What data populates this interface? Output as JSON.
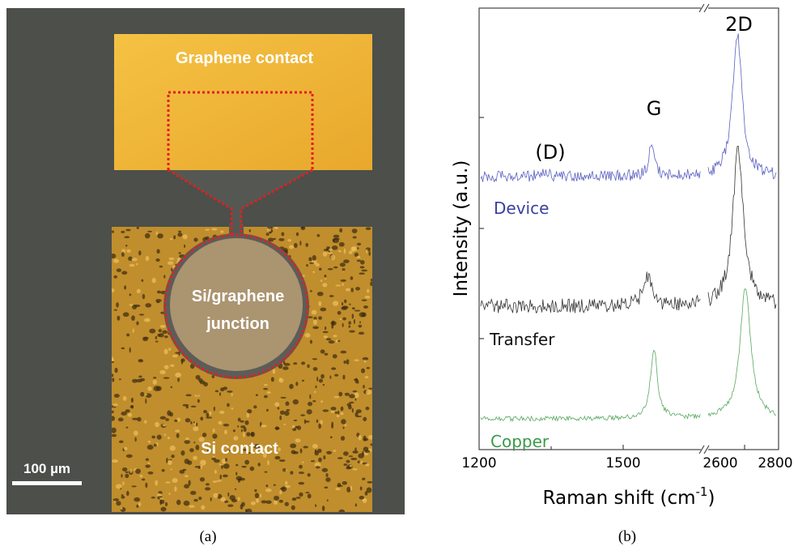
{
  "panel_a": {
    "graphene_contact": "Graphene contact",
    "junction_line1": "Si/graphene",
    "junction_line2": "junction",
    "si_contact": "Si contact",
    "scale_bar": "100 µm",
    "caption": "(a)"
  },
  "panel_b": {
    "peak_d": "(D)",
    "peak_g": "G",
    "peak_2d": "2D",
    "spectrum_device": "Device",
    "spectrum_transfer": "Transfer",
    "spectrum_copper": "Copper",
    "x_ticks": [
      "1200",
      "1500",
      "2600",
      "2800"
    ],
    "x_label": "Raman shift (cm",
    "x_label_sup": "-1",
    "x_label_end": ")",
    "y_label": "Intensity (a.u.)",
    "caption": "(b)"
  }
}
